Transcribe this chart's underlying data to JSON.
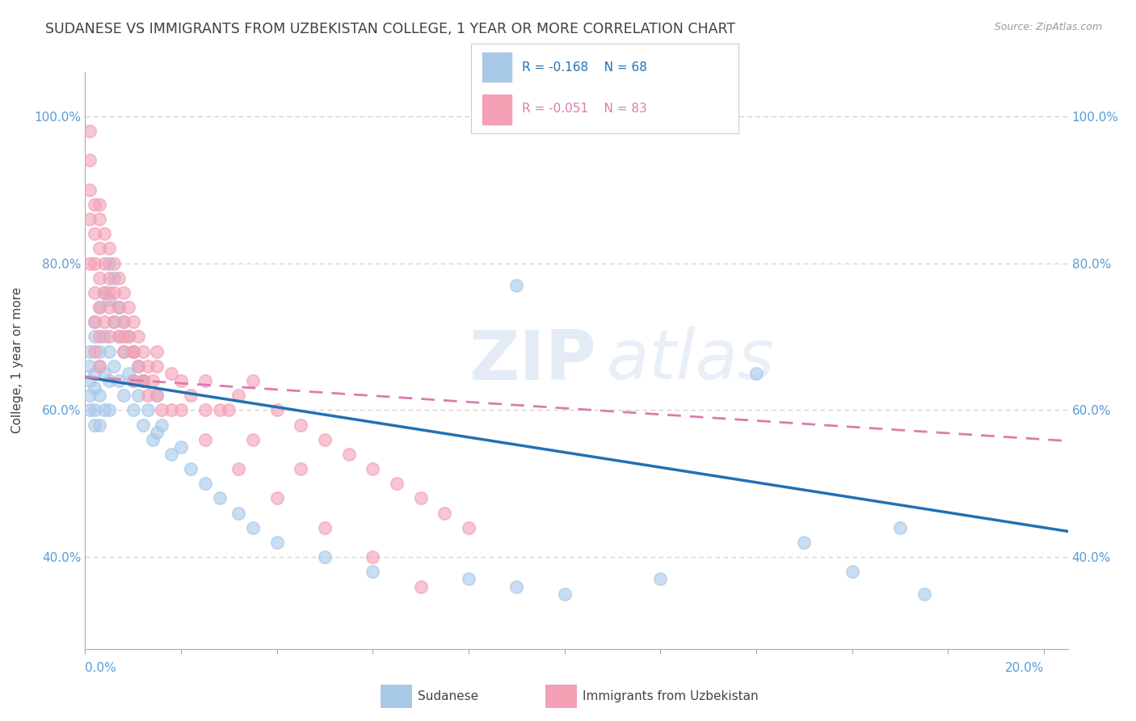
{
  "title": "SUDANESE VS IMMIGRANTS FROM UZBEKISTAN COLLEGE, 1 YEAR OR MORE CORRELATION CHART",
  "source": "Source: ZipAtlas.com",
  "ylabel": "College, 1 year or more",
  "xlim": [
    0.0,
    0.205
  ],
  "ylim": [
    0.275,
    1.06
  ],
  "yticks": [
    0.4,
    0.6,
    0.8,
    1.0
  ],
  "ytick_labels": [
    "40.0%",
    "60.0%",
    "80.0%",
    "100.0%"
  ],
  "title_color": "#404040",
  "axis_label_color": "#5b9bd5",
  "grid_color": "#cccccc",
  "scatter_blue": "#a8c8e8",
  "scatter_pink": "#f4a0b5",
  "trend_blue": "#2171b5",
  "trend_pink": "#de7ab0",
  "background": "#ffffff",
  "watermark_zip": "ZIP",
  "watermark_atlas": "atlas",
  "legend_blue_R": "R = -0.168",
  "legend_blue_N": "N = 68",
  "legend_pink_R": "R = -0.051",
  "legend_pink_N": "N = 83",
  "blue_trend_x0": 0.0,
  "blue_trend_x1": 0.205,
  "blue_trend_y0": 0.645,
  "blue_trend_y1": 0.435,
  "pink_trend_x0": 0.0,
  "pink_trend_x1": 0.205,
  "pink_trend_y0": 0.645,
  "pink_trend_y1": 0.558,
  "blue_x": [
    0.001,
    0.001,
    0.001,
    0.001,
    0.001,
    0.002,
    0.002,
    0.002,
    0.002,
    0.002,
    0.002,
    0.003,
    0.003,
    0.003,
    0.003,
    0.003,
    0.004,
    0.004,
    0.004,
    0.004,
    0.005,
    0.005,
    0.005,
    0.005,
    0.005,
    0.006,
    0.006,
    0.006,
    0.007,
    0.007,
    0.007,
    0.008,
    0.008,
    0.008,
    0.009,
    0.009,
    0.01,
    0.01,
    0.01,
    0.011,
    0.011,
    0.012,
    0.012,
    0.013,
    0.014,
    0.015,
    0.015,
    0.016,
    0.018,
    0.02,
    0.022,
    0.025,
    0.028,
    0.032,
    0.035,
    0.04,
    0.05,
    0.06,
    0.08,
    0.09,
    0.1,
    0.12,
    0.14,
    0.15,
    0.16,
    0.175,
    0.09,
    0.17
  ],
  "blue_y": [
    0.66,
    0.64,
    0.62,
    0.6,
    0.68,
    0.7,
    0.65,
    0.63,
    0.6,
    0.58,
    0.72,
    0.68,
    0.66,
    0.62,
    0.58,
    0.74,
    0.76,
    0.7,
    0.65,
    0.6,
    0.8,
    0.75,
    0.68,
    0.64,
    0.6,
    0.78,
    0.72,
    0.66,
    0.74,
    0.7,
    0.64,
    0.72,
    0.68,
    0.62,
    0.7,
    0.65,
    0.68,
    0.64,
    0.6,
    0.66,
    0.62,
    0.64,
    0.58,
    0.6,
    0.56,
    0.62,
    0.57,
    0.58,
    0.54,
    0.55,
    0.52,
    0.5,
    0.48,
    0.46,
    0.44,
    0.42,
    0.4,
    0.38,
    0.37,
    0.36,
    0.35,
    0.37,
    0.65,
    0.42,
    0.38,
    0.35,
    0.77,
    0.44
  ],
  "pink_x": [
    0.001,
    0.001,
    0.001,
    0.001,
    0.001,
    0.002,
    0.002,
    0.002,
    0.002,
    0.002,
    0.002,
    0.003,
    0.003,
    0.003,
    0.003,
    0.003,
    0.003,
    0.004,
    0.004,
    0.004,
    0.004,
    0.005,
    0.005,
    0.005,
    0.005,
    0.006,
    0.006,
    0.006,
    0.007,
    0.007,
    0.007,
    0.008,
    0.008,
    0.008,
    0.009,
    0.009,
    0.01,
    0.01,
    0.01,
    0.011,
    0.011,
    0.012,
    0.012,
    0.013,
    0.013,
    0.014,
    0.015,
    0.015,
    0.016,
    0.018,
    0.02,
    0.022,
    0.025,
    0.028,
    0.032,
    0.035,
    0.04,
    0.045,
    0.05,
    0.055,
    0.06,
    0.065,
    0.07,
    0.075,
    0.08,
    0.015,
    0.025,
    0.035,
    0.045,
    0.003,
    0.005,
    0.008,
    0.012,
    0.018,
    0.025,
    0.032,
    0.04,
    0.05,
    0.06,
    0.07,
    0.01,
    0.02,
    0.03
  ],
  "pink_y": [
    0.98,
    0.94,
    0.9,
    0.86,
    0.8,
    0.88,
    0.84,
    0.8,
    0.76,
    0.72,
    0.68,
    0.86,
    0.82,
    0.78,
    0.74,
    0.7,
    0.66,
    0.84,
    0.8,
    0.76,
    0.72,
    0.82,
    0.78,
    0.74,
    0.7,
    0.8,
    0.76,
    0.72,
    0.78,
    0.74,
    0.7,
    0.76,
    0.72,
    0.68,
    0.74,
    0.7,
    0.72,
    0.68,
    0.64,
    0.7,
    0.66,
    0.68,
    0.64,
    0.66,
    0.62,
    0.64,
    0.62,
    0.68,
    0.6,
    0.65,
    0.6,
    0.62,
    0.64,
    0.6,
    0.62,
    0.64,
    0.6,
    0.58,
    0.56,
    0.54,
    0.52,
    0.5,
    0.48,
    0.46,
    0.44,
    0.66,
    0.6,
    0.56,
    0.52,
    0.88,
    0.76,
    0.7,
    0.64,
    0.6,
    0.56,
    0.52,
    0.48,
    0.44,
    0.4,
    0.36,
    0.68,
    0.64,
    0.6
  ]
}
